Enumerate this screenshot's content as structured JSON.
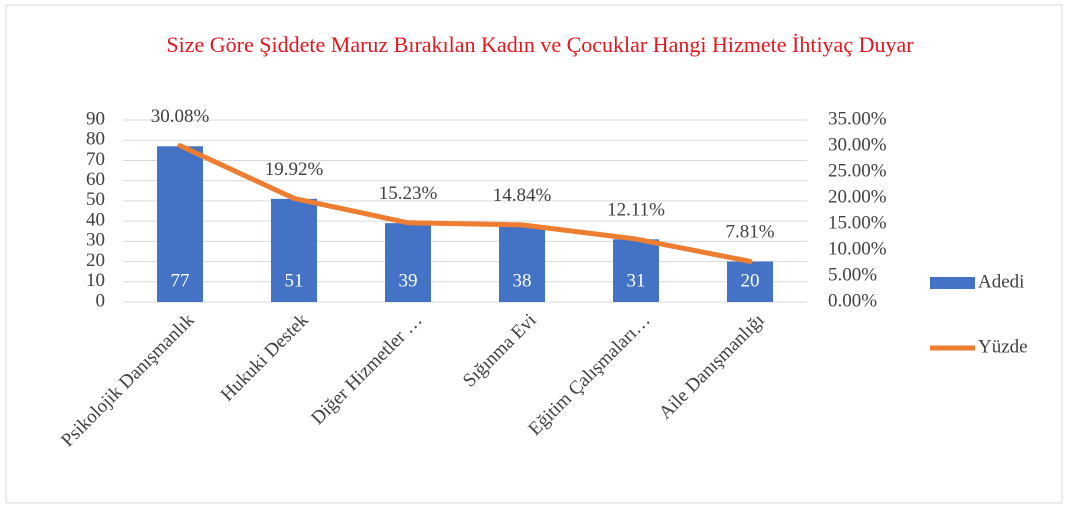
{
  "chart_data": {
    "type": "bar",
    "title": "Size Göre Şiddete Maruz Bırakılan Kadın ve Çocuklar Hangi Hizmete İhtiyaç Duyar",
    "categories": [
      "Psikolojik Danışmanlık",
      "Hukuki Destek",
      "Diğer Hizmetler …",
      "Sığınma Evi",
      "Eğitim Çalışmaları…",
      "Aile Danışmanlığı"
    ],
    "series": [
      {
        "name": "Adedi",
        "type": "bar",
        "color": "#4472c4",
        "values": [
          77,
          51,
          39,
          38,
          31,
          20
        ]
      },
      {
        "name": "Yüzde",
        "type": "line",
        "axis": "y2",
        "color": "#ed7d31",
        "values": [
          30.08,
          19.92,
          15.23,
          14.84,
          12.11,
          7.81
        ],
        "value_labels": [
          "30.08%",
          "19.92%",
          "15.23%",
          "14.84%",
          "12.11%",
          "7.81%"
        ]
      }
    ],
    "ylim": [
      0,
      90
    ],
    "yticks": [
      0,
      10,
      20,
      30,
      40,
      50,
      60,
      70,
      80,
      90
    ],
    "y2lim": [
      0,
      35
    ],
    "y2ticks": [
      {
        "value": 0,
        "label": "0.00%"
      },
      {
        "value": 5,
        "label": "5.00%"
      },
      {
        "value": 10,
        "label": "10.00%"
      },
      {
        "value": 15,
        "label": "15.00%"
      },
      {
        "value": 20,
        "label": "20.00%"
      },
      {
        "value": 25,
        "label": "25.00%"
      },
      {
        "value": 30,
        "label": "30.00%"
      },
      {
        "value": 35,
        "label": "35.00%"
      }
    ],
    "grid": true,
    "legend": "right"
  }
}
